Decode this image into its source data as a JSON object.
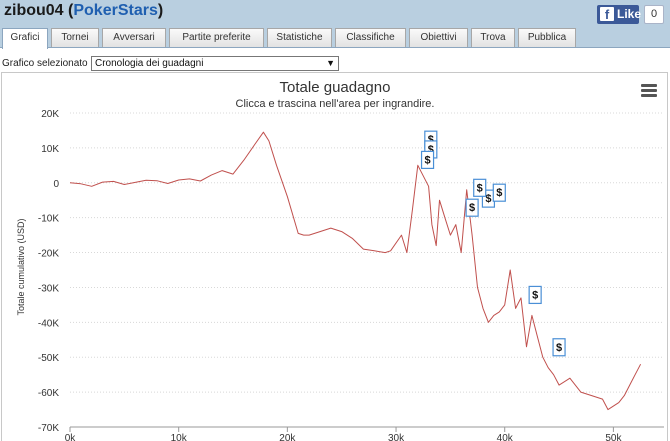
{
  "header": {
    "player": "zibou04",
    "site_open": " (",
    "site": "PokerStars",
    "site_close": ")",
    "like_label": "Like",
    "like_count": "0"
  },
  "tabs": [
    {
      "label": "Grafici"
    },
    {
      "label": "Tornei"
    },
    {
      "label": "Avversari"
    },
    {
      "label": "Partite preferite"
    },
    {
      "label": "Statistiche"
    },
    {
      "label": "Classifiche"
    },
    {
      "label": "Obiettivi"
    },
    {
      "label": "Trova"
    },
    {
      "label": "Pubblica"
    }
  ],
  "selector": {
    "label": "Grafico selezionato",
    "value": "Cronologia dei guadagni"
  },
  "chart_data": {
    "type": "line",
    "title": "Totale guadagno",
    "subtitle": "Clicca e trascina nell'area per ingrandire.",
    "xlabel": "",
    "ylabel": "Totale cumulativo (USD)",
    "xlim": [
      0,
      53000
    ],
    "ylim": [
      -70000,
      20000
    ],
    "x_ticks": [
      "0k",
      "10k",
      "20k",
      "30k",
      "40k",
      "50k"
    ],
    "y_ticks": [
      "20K",
      "10K",
      "0",
      "-10K",
      "-20K",
      "-30K",
      "-40K",
      "-50K",
      "-60K",
      "-70K"
    ],
    "grid": true,
    "line_color": "#c0504d",
    "series": [
      {
        "x": [
          0,
          1000,
          2000,
          3000,
          4000,
          5000,
          6000,
          7000,
          8000,
          9000,
          10000,
          11000,
          12000,
          13000,
          14000,
          15000,
          16000,
          17000,
          17800,
          18300,
          19000,
          20000,
          21000,
          21500,
          22000,
          23000,
          24000,
          25000,
          26000,
          27000,
          28000,
          29000,
          29500,
          30500,
          31000,
          31500,
          32000,
          32500,
          33000,
          33300,
          33700,
          34000,
          34500,
          35000,
          35500,
          36000,
          36500,
          37000,
          37500,
          38000,
          38500,
          39000,
          39500,
          40000,
          40500,
          41000,
          41500,
          42000,
          42500,
          43000,
          43500,
          44000,
          44500,
          45000,
          46000,
          47000,
          48000,
          49000,
          49500,
          50000,
          50500,
          51000,
          51500,
          52000,
          52500
        ],
        "y": [
          0,
          -300,
          -1000,
          200,
          400,
          -500,
          100,
          700,
          600,
          -200,
          800,
          1100,
          500,
          2200,
          3500,
          2500,
          6500,
          11000,
          14500,
          12000,
          5000,
          -4000,
          -14500,
          -15000,
          -15000,
          -14000,
          -13000,
          -14000,
          -16000,
          -19000,
          -19500,
          -20000,
          -19500,
          -15000,
          -20000,
          -8000,
          5000,
          2000,
          -1000,
          -12000,
          -18000,
          -5000,
          -10000,
          -15000,
          -12000,
          -20000,
          -2000,
          -15000,
          -30000,
          -36000,
          -40000,
          -38000,
          -37000,
          -35000,
          -25000,
          -36000,
          -33000,
          -47000,
          -38000,
          -44000,
          -50000,
          -53000,
          -55000,
          -58000,
          -56000,
          -60000,
          -61000,
          -62000,
          -65000,
          -64000,
          -63000,
          -61000,
          -58000,
          -55000,
          -52000
        ]
      }
    ],
    "markers": [
      {
        "x": 33200,
        "y": 12500,
        "label": "$"
      },
      {
        "x": 33200,
        "y": 9700,
        "label": "$"
      },
      {
        "x": 32900,
        "y": 6700,
        "label": "$"
      },
      {
        "x": 37000,
        "y": -7000,
        "label": "$"
      },
      {
        "x": 38500,
        "y": -4400,
        "label": "$"
      },
      {
        "x": 37700,
        "y": -1300,
        "label": "$"
      },
      {
        "x": 39500,
        "y": -2700,
        "label": "$"
      },
      {
        "x": 42800,
        "y": -32000,
        "label": "$"
      },
      {
        "x": 45000,
        "y": -47000,
        "label": "$"
      }
    ]
  }
}
